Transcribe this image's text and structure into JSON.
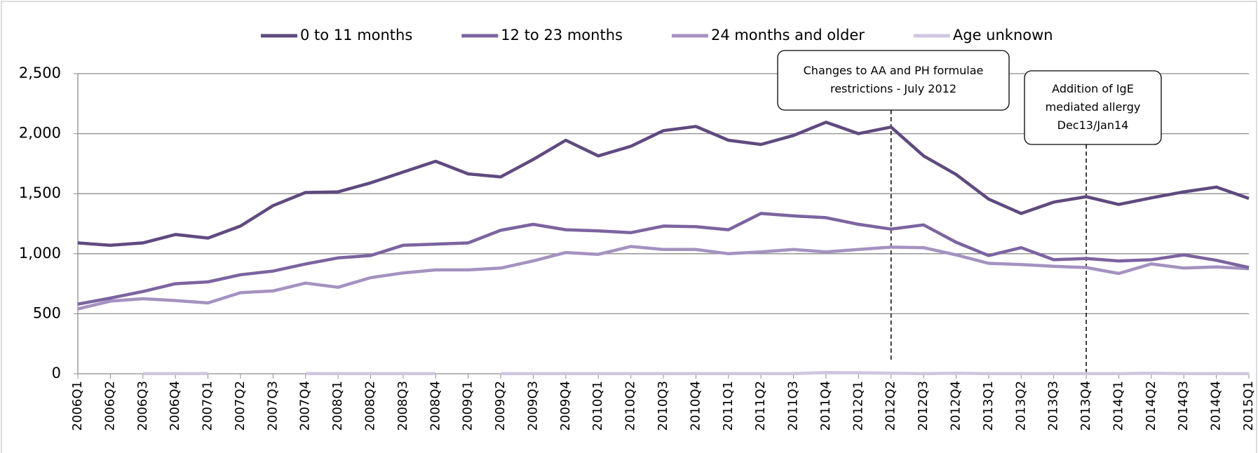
{
  "chart_data": {
    "type": "line",
    "categories": [
      "2006Q1",
      "2006Q2",
      "2006Q3",
      "2006Q4",
      "2007Q1",
      "2007Q2",
      "2007Q3",
      "2007Q4",
      "2008Q1",
      "2008Q2",
      "2008Q3",
      "2008Q4",
      "2009Q1",
      "2009Q2",
      "2009Q3",
      "2009Q4",
      "2010Q1",
      "2010Q2",
      "2010Q3",
      "2010Q4",
      "2011Q1",
      "2011Q2",
      "2011Q3",
      "2011Q4",
      "2012Q1",
      "2012Q2",
      "2012Q3",
      "2012Q4",
      "2013Q1",
      "2013Q2",
      "2013Q3",
      "2013Q4",
      "2014Q1",
      "2014Q2",
      "2014Q3",
      "2014Q4",
      "2015Q1"
    ],
    "series": [
      {
        "name": "0 to 11 months",
        "color": "#5f4a7f",
        "values": [
          1090,
          1070,
          1090,
          1160,
          1130,
          1230,
          1400,
          1510,
          1515,
          1590,
          1680,
          1770,
          1665,
          1640,
          1785,
          1945,
          1815,
          1895,
          2025,
          2060,
          1945,
          1910,
          1985,
          2095,
          2000,
          2055,
          1815,
          1660,
          1455,
          1335,
          1430,
          1475,
          1410,
          1465,
          1515,
          1555,
          1460
        ]
      },
      {
        "name": "12 to 23 months",
        "color": "#7b64a0",
        "values": [
          580,
          630,
          685,
          750,
          765,
          825,
          855,
          915,
          965,
          985,
          1070,
          1080,
          1090,
          1195,
          1245,
          1200,
          1190,
          1175,
          1230,
          1225,
          1200,
          1335,
          1315,
          1300,
          1245,
          1205,
          1240,
          1095,
          985,
          1050,
          950,
          960,
          940,
          950,
          990,
          945,
          885
        ]
      },
      {
        "name": "24 months and older",
        "color": "#a492c0",
        "values": [
          540,
          605,
          625,
          610,
          590,
          675,
          690,
          755,
          720,
          800,
          840,
          865,
          865,
          880,
          940,
          1010,
          995,
          1060,
          1035,
          1035,
          1000,
          1015,
          1035,
          1015,
          1035,
          1055,
          1050,
          990,
          920,
          910,
          895,
          885,
          835,
          915,
          880,
          890,
          875
        ]
      },
      {
        "name": "Age unknown",
        "color": "#cfc6e0",
        "values": [
          null,
          null,
          2,
          2,
          2,
          null,
          null,
          2,
          2,
          2,
          2,
          2,
          null,
          2,
          2,
          2,
          2,
          2,
          2,
          2,
          2,
          2,
          2,
          10,
          8,
          4,
          2,
          4,
          2,
          2,
          2,
          2,
          2,
          4,
          2,
          2,
          2
        ]
      }
    ],
    "ylim": [
      0,
      2500
    ],
    "yticks": [
      0,
      500,
      {
        "value": 1000,
        "label": "1,000"
      },
      {
        "value": 1500,
        "label": "1,500"
      },
      {
        "value": 2000,
        "label": "2,000"
      },
      {
        "value": 2500,
        "label": "2,500"
      }
    ],
    "grid": true,
    "legend": "top",
    "annotations": [
      {
        "x": "2012Q2",
        "lines": [
          "Changes to AA and PH formulae",
          "restrictions - July 2012"
        ]
      },
      {
        "x": "2013Q4",
        "lines": [
          "Addition of IgE",
          "mediated allergy",
          "Dec13/Jan14"
        ]
      }
    ]
  }
}
